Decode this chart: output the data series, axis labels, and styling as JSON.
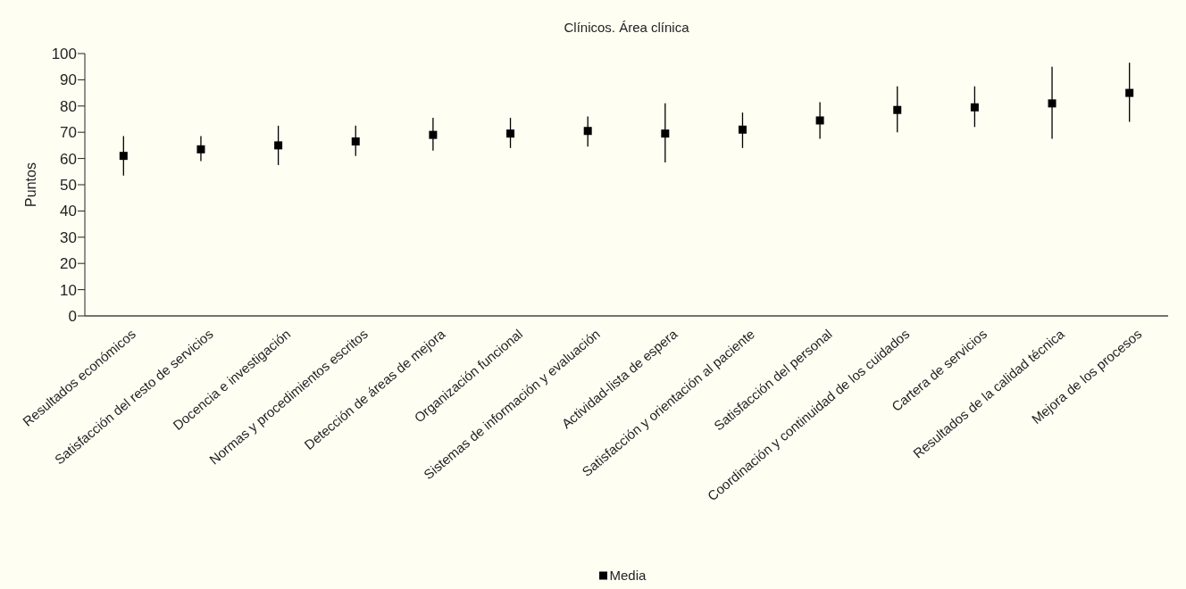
{
  "chart_data": {
    "type": "scatter",
    "title": "Clínicos. Área clínica",
    "ylabel": "Puntos",
    "categories": [
      "Resultados económicos",
      "Satisfacción del resto de servicios",
      "Docencia e investigación",
      "Normas y procedimientos escritos",
      "Detección de áreas de mejora",
      "Organización funcional",
      "Sistemas de información y evaluación",
      "Actividad-lista de espera",
      "Satisfacción y orientación al paciente",
      "Satisfacción del personal",
      "Coordinación y continuidad de los cuidados",
      "Cartera de servicios",
      "Resultados de la calidad técnica",
      "Mejora de los procesos"
    ],
    "series": [
      {
        "name": "Media",
        "color": "#000000",
        "values": [
          61,
          63.5,
          65,
          66.5,
          69,
          69.5,
          70.5,
          69.5,
          71,
          74.5,
          78.5,
          79.5,
          81,
          85
        ],
        "errors": [
          [
            53.5,
            68.5
          ],
          [
            59,
            68.5
          ],
          [
            57.5,
            72.5
          ],
          [
            61,
            72.5
          ],
          [
            63,
            75.5
          ],
          [
            64,
            75.5
          ],
          [
            64.5,
            76
          ],
          [
            58.5,
            81
          ],
          [
            64,
            77.5
          ],
          [
            67.5,
            81.5
          ],
          [
            70,
            87.5
          ],
          [
            72,
            87.5
          ],
          [
            67.5,
            95
          ],
          [
            74,
            96.5
          ]
        ]
      }
    ],
    "ylim": [
      0,
      100
    ],
    "yticks": [
      0,
      10,
      20,
      30,
      40,
      50,
      60,
      70,
      80,
      90,
      100
    ],
    "marker": "square",
    "legend": "bottom",
    "grid": false
  }
}
